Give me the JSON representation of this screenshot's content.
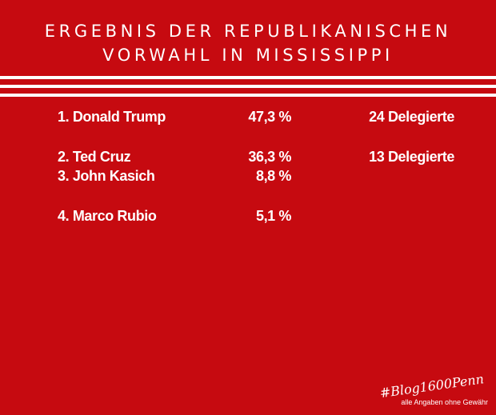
{
  "title": {
    "line1": "ERGEBNIS DER REPUBLIKANISCHEN",
    "line2": "VORWAHL IN MISSISSIPPI"
  },
  "results": [
    {
      "name": "1.  Donald Trump",
      "percent": "47,3 %",
      "delegates": "24 Delegierte"
    },
    {
      "name": "2.  Ted Cruz",
      "percent": "36,3 %",
      "delegates": "13 Delegierte"
    },
    {
      "name": "3.  John Kasich",
      "percent": "8,8 %",
      "delegates": ""
    },
    {
      "name": "4.  Marco Rubio",
      "percent": "5,1 %",
      "delegates": ""
    }
  ],
  "footer": {
    "hashtag": "#Blog1600Penn",
    "disclaimer": "alle Angaben ohne Gewähr"
  },
  "colors": {
    "background": "#c60a10",
    "text": "#ffffff"
  }
}
